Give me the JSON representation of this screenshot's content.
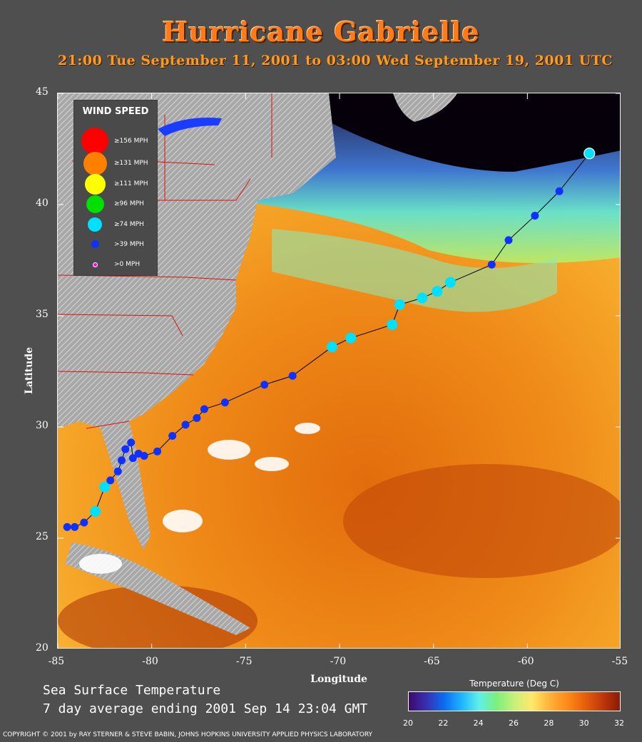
{
  "title": "Hurricane Gabrielle",
  "subtitle": "21:00 Tue September 11, 2001 to 03:00 Wed September 19, 2001  UTC",
  "axes": {
    "xlabel": "Longitude",
    "ylabel": "Latitude",
    "x_ticks": [
      "-85",
      "-80",
      "-75",
      "-70",
      "-65",
      "-60",
      "-55"
    ],
    "y_ticks": [
      "45",
      "40",
      "35",
      "30",
      "25",
      "20"
    ],
    "x_range": [
      -85,
      -55
    ],
    "y_range": [
      20,
      45
    ]
  },
  "legend": {
    "title": "WIND SPEED",
    "items": [
      {
        "label": "≥156 MPH",
        "color": "#ff0000"
      },
      {
        "label": "≥131 MPH",
        "color": "#ff7f00"
      },
      {
        "label": "≥111 MPH",
        "color": "#ffff00"
      },
      {
        "label": "≥96 MPH",
        "color": "#00e000"
      },
      {
        "label": "≥74 MPH",
        "color": "#00e0ff"
      },
      {
        "label": ">39 MPH",
        "color": "#1030ff"
      },
      {
        "label": ">0 MPH",
        "color": "#ff00ff"
      }
    ]
  },
  "sst": {
    "title": "Sea Surface Temperature",
    "subtitle": "7 day average ending 2001 Sep 14 23:04 GMT"
  },
  "colorbar": {
    "title": "Temperature (Deg C)",
    "ticks": [
      "20",
      "22",
      "24",
      "26",
      "28",
      "30",
      "32"
    ],
    "range": [
      20,
      32
    ]
  },
  "copyright": "COPYRIGHT © 2001 by RAY STERNER & STEVE BABIN, JOHNS HOPKINS UNIVERSITY APPLIED PHYSICS LABORATORY",
  "chart_data": {
    "type": "scatter",
    "title": "Hurricane Gabrielle",
    "xlabel": "Longitude",
    "ylabel": "Latitude",
    "xlim": [
      -85,
      -55
    ],
    "ylim": [
      20,
      45
    ],
    "track": [
      {
        "lon": -84.5,
        "lat": 25.5,
        "cat": ">39"
      },
      {
        "lon": -84.1,
        "lat": 25.5,
        "cat": ">39"
      },
      {
        "lon": -83.6,
        "lat": 25.7,
        "cat": ">39"
      },
      {
        "lon": -83.0,
        "lat": 26.2,
        "cat": "74"
      },
      {
        "lon": -82.5,
        "lat": 27.3,
        "cat": "74"
      },
      {
        "lon": -82.2,
        "lat": 27.6,
        "cat": ">39"
      },
      {
        "lon": -81.8,
        "lat": 28.0,
        "cat": ">39"
      },
      {
        "lon": -81.6,
        "lat": 28.5,
        "cat": ">39"
      },
      {
        "lon": -81.4,
        "lat": 29.0,
        "cat": ">39"
      },
      {
        "lon": -81.1,
        "lat": 29.3,
        "cat": ">39"
      },
      {
        "lon": -81.0,
        "lat": 28.6,
        "cat": ">39"
      },
      {
        "lon": -80.7,
        "lat": 28.8,
        "cat": ">39"
      },
      {
        "lon": -80.4,
        "lat": 28.7,
        "cat": ">39"
      },
      {
        "lon": -79.7,
        "lat": 28.9,
        "cat": ">39"
      },
      {
        "lon": -78.9,
        "lat": 29.6,
        "cat": ">39"
      },
      {
        "lon": -78.2,
        "lat": 30.1,
        "cat": ">39"
      },
      {
        "lon": -77.6,
        "lat": 30.4,
        "cat": ">39"
      },
      {
        "lon": -77.2,
        "lat": 30.8,
        "cat": ">39"
      },
      {
        "lon": -76.1,
        "lat": 31.1,
        "cat": ">39"
      },
      {
        "lon": -74.0,
        "lat": 31.9,
        "cat": ">39"
      },
      {
        "lon": -72.5,
        "lat": 32.3,
        "cat": ">39"
      },
      {
        "lon": -70.4,
        "lat": 33.6,
        "cat": "74"
      },
      {
        "lon": -69.4,
        "lat": 34.0,
        "cat": "74"
      },
      {
        "lon": -67.2,
        "lat": 34.6,
        "cat": "74"
      },
      {
        "lon": -66.8,
        "lat": 35.5,
        "cat": "74"
      },
      {
        "lon": -65.6,
        "lat": 35.8,
        "cat": "74"
      },
      {
        "lon": -64.8,
        "lat": 36.1,
        "cat": "74"
      },
      {
        "lon": -64.1,
        "lat": 36.5,
        "cat": "74"
      },
      {
        "lon": -61.9,
        "lat": 37.3,
        "cat": ">39"
      },
      {
        "lon": -61.0,
        "lat": 38.4,
        "cat": ">39"
      },
      {
        "lon": -59.6,
        "lat": 39.5,
        "cat": ">39"
      },
      {
        "lon": -58.3,
        "lat": 40.6,
        "cat": ">39"
      },
      {
        "lon": -56.7,
        "lat": 42.3,
        "cat": "74"
      }
    ]
  }
}
